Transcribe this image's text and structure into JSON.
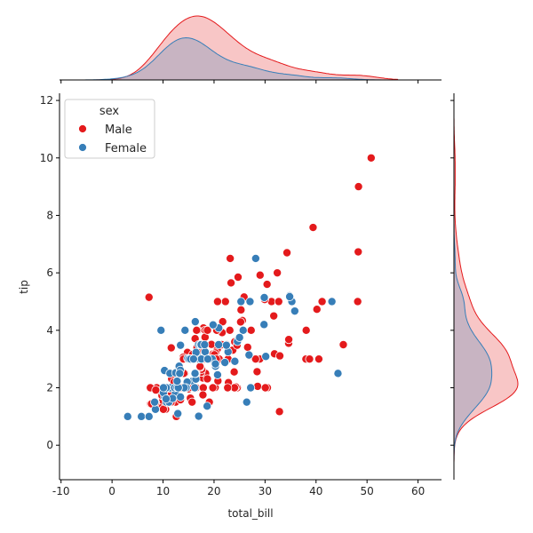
{
  "chart_data": {
    "type": "scatter",
    "kind": "jointplot with marginal KDE",
    "xlabel": "total_bill",
    "ylabel": "tip",
    "xlim": [
      -10.3,
      64.6
    ],
    "ylim": [
      -1.2,
      12.25
    ],
    "xticks": [
      -10,
      0,
      10,
      20,
      30,
      40,
      50,
      60
    ],
    "yticks": [
      0,
      2,
      4,
      6,
      8,
      10,
      12
    ],
    "grid": false,
    "legend": {
      "title": "sex",
      "placement": "top-left"
    },
    "series": [
      {
        "name": "Male",
        "color": "#e41a1c",
        "points": [
          [
            10.34,
            1.66
          ],
          [
            21.01,
            3.5
          ],
          [
            23.68,
            3.31
          ],
          [
            25.29,
            4.71
          ],
          [
            8.77,
            2.0
          ],
          [
            26.88,
            3.12
          ],
          [
            15.04,
            1.96
          ],
          [
            14.78,
            3.23
          ],
          [
            10.27,
            1.71
          ],
          [
            15.42,
            1.57
          ],
          [
            18.43,
            3.0
          ],
          [
            21.58,
            3.92
          ],
          [
            16.29,
            3.71
          ],
          [
            20.65,
            3.35
          ],
          [
            17.92,
            4.08
          ],
          [
            39.42,
            7.58
          ],
          [
            19.82,
            3.18
          ],
          [
            17.81,
            2.34
          ],
          [
            13.37,
            2.0
          ],
          [
            12.69,
            2.0
          ],
          [
            21.7,
            4.3
          ],
          [
            9.55,
            1.45
          ],
          [
            18.35,
            2.5
          ],
          [
            17.78,
            3.27
          ],
          [
            24.06,
            3.6
          ],
          [
            16.31,
            2.0
          ],
          [
            18.69,
            2.31
          ],
          [
            31.27,
            5.0
          ],
          [
            16.04,
            2.24
          ],
          [
            17.46,
            2.54
          ],
          [
            13.94,
            3.06
          ],
          [
            9.68,
            1.32
          ],
          [
            30.4,
            5.6
          ],
          [
            18.29,
            3.0
          ],
          [
            22.23,
            5.0
          ],
          [
            32.4,
            6.0
          ],
          [
            28.55,
            2.05
          ],
          [
            18.04,
            3.0
          ],
          [
            12.54,
            2.5
          ],
          [
            9.94,
            1.56
          ],
          [
            25.56,
            4.34
          ],
          [
            19.49,
            3.51
          ],
          [
            38.01,
            3.0
          ],
          [
            11.24,
            1.76
          ],
          [
            48.27,
            6.73
          ],
          [
            20.29,
            3.21
          ],
          [
            13.81,
            2.0
          ],
          [
            11.02,
            1.98
          ],
          [
            18.29,
            3.76
          ],
          [
            17.59,
            2.64
          ],
          [
            20.08,
            3.15
          ],
          [
            20.23,
            2.01
          ],
          [
            15.01,
            2.09
          ],
          [
            12.02,
            1.97
          ],
          [
            10.51,
            1.25
          ],
          [
            17.92,
            3.08
          ],
          [
            27.2,
            4.0
          ],
          [
            22.76,
            3.0
          ],
          [
            17.29,
            2.71
          ],
          [
            19.44,
            3.0
          ],
          [
            16.66,
            3.4
          ],
          [
            32.68,
            5.0
          ],
          [
            15.98,
            2.03
          ],
          [
            13.03,
            2.0
          ],
          [
            18.28,
            4.0
          ],
          [
            24.71,
            5.85
          ],
          [
            21.16,
            3.0
          ],
          [
            28.97,
            3.0
          ],
          [
            22.49,
            3.5
          ],
          [
            40.17,
            4.73
          ],
          [
            27.28,
            4.0
          ],
          [
            12.03,
            1.5
          ],
          [
            21.01,
            3.0
          ],
          [
            12.46,
            1.5
          ],
          [
            15.36,
            1.64
          ],
          [
            20.49,
            4.06
          ],
          [
            25.21,
            4.29
          ],
          [
            18.24,
            3.76
          ],
          [
            14.0,
            3.0
          ],
          [
            38.07,
            4.0
          ],
          [
            23.95,
            2.55
          ],
          [
            29.93,
            5.07
          ],
          [
            11.69,
            2.31
          ],
          [
            14.26,
            2.5
          ],
          [
            15.95,
            2.0
          ],
          [
            8.52,
            1.48
          ],
          [
            22.82,
            2.18
          ],
          [
            19.08,
            1.5
          ],
          [
            16.0,
            2.0
          ],
          [
            34.3,
            6.7
          ],
          [
            41.19,
            5.0
          ],
          [
            9.78,
            1.73
          ],
          [
            7.51,
            2.0
          ],
          [
            14.07,
            2.5
          ],
          [
            13.13,
            2.0
          ],
          [
            17.26,
            2.74
          ],
          [
            24.55,
            2.0
          ],
          [
            19.77,
            2.0
          ],
          [
            48.17,
            5.0
          ],
          [
            16.49,
            2.0
          ],
          [
            21.5,
            3.5
          ],
          [
            12.66,
            2.5
          ],
          [
            13.81,
            2.0
          ],
          [
            24.52,
            3.48
          ],
          [
            20.76,
            2.24
          ],
          [
            31.71,
            4.5
          ],
          [
            50.81,
            10.0
          ],
          [
            15.81,
            3.16
          ],
          [
            7.25,
            5.15
          ],
          [
            31.85,
            3.18
          ],
          [
            16.82,
            4.0
          ],
          [
            32.9,
            3.11
          ],
          [
            17.89,
            2.0
          ],
          [
            14.48,
            2.0
          ],
          [
            34.63,
            3.55
          ],
          [
            34.65,
            3.68
          ],
          [
            23.33,
            5.65
          ],
          [
            45.35,
            3.5
          ],
          [
            23.17,
            6.5
          ],
          [
            40.55,
            3.0
          ],
          [
            20.69,
            5.0
          ],
          [
            30.46,
            2.0
          ],
          [
            23.1,
            4.0
          ],
          [
            15.69,
            1.5
          ],
          [
            28.44,
            2.56
          ],
          [
            15.48,
            2.02
          ],
          [
            16.58,
            4.0
          ],
          [
            7.56,
            1.44
          ],
          [
            10.34,
            2.0
          ],
          [
            13.51,
            2.0
          ],
          [
            18.71,
            4.0
          ],
          [
            20.53,
            4.0
          ],
          [
            26.59,
            3.41
          ],
          [
            38.73,
            3.0
          ],
          [
            24.27,
            2.03
          ],
          [
            30.06,
            2.0
          ],
          [
            25.89,
            5.16
          ],
          [
            48.33,
            9.0
          ],
          [
            28.15,
            3.0
          ],
          [
            11.59,
            1.5
          ],
          [
            7.74,
            1.44
          ],
          [
            12.16,
            2.2
          ],
          [
            8.58,
            1.92
          ],
          [
            13.42,
            1.58
          ],
          [
            20.45,
            3.0
          ],
          [
            13.28,
            2.72
          ],
          [
            24.01,
            2.0
          ],
          [
            15.69,
            3.0
          ],
          [
            11.61,
            3.39
          ],
          [
            10.77,
            1.47
          ],
          [
            15.53,
            3.0
          ],
          [
            10.07,
            1.25
          ],
          [
            12.6,
            1.0
          ],
          [
            32.83,
            1.17
          ],
          [
            29.03,
            5.92
          ],
          [
            22.67,
            2.0
          ],
          [
            17.82,
            1.75
          ]
        ]
      },
      {
        "name": "Female",
        "color": "#377eb8",
        "points": [
          [
            16.99,
            1.01
          ],
          [
            24.59,
            3.61
          ],
          [
            35.26,
            5.0
          ],
          [
            14.83,
            3.02
          ],
          [
            10.33,
            1.67
          ],
          [
            16.97,
            3.5
          ],
          [
            20.29,
            2.75
          ],
          [
            15.77,
            2.23
          ],
          [
            19.65,
            3.0
          ],
          [
            15.06,
            3.0
          ],
          [
            20.69,
            2.45
          ],
          [
            16.93,
            3.07
          ],
          [
            10.29,
            2.6
          ],
          [
            34.81,
            5.2
          ],
          [
            26.41,
            1.5
          ],
          [
            16.45,
            2.47
          ],
          [
            3.07,
            1.0
          ],
          [
            17.07,
            3.0
          ],
          [
            26.86,
            3.14
          ],
          [
            25.28,
            5.0
          ],
          [
            14.73,
            2.2
          ],
          [
            10.07,
            1.83
          ],
          [
            34.83,
            5.17
          ],
          [
            5.75,
            1.0
          ],
          [
            16.32,
            4.3
          ],
          [
            22.75,
            3.25
          ],
          [
            11.35,
            2.5
          ],
          [
            15.38,
            3.0
          ],
          [
            44.3,
            2.5
          ],
          [
            22.42,
            3.48
          ],
          [
            20.92,
            4.08
          ],
          [
            14.31,
            4.0
          ],
          [
            7.25,
            1.0
          ],
          [
            25.71,
            4.0
          ],
          [
            17.31,
            3.5
          ],
          [
            10.65,
            1.5
          ],
          [
            12.43,
            1.8
          ],
          [
            24.08,
            2.92
          ],
          [
            13.42,
            1.68
          ],
          [
            12.48,
            2.52
          ],
          [
            29.8,
            4.2
          ],
          [
            14.52,
            2.0
          ],
          [
            11.38,
            2.0
          ],
          [
            20.27,
            2.83
          ],
          [
            11.17,
            1.5
          ],
          [
            12.26,
            2.0
          ],
          [
            18.26,
            3.25
          ],
          [
            8.51,
            1.25
          ],
          [
            10.33,
            2.0
          ],
          [
            14.15,
            2.0
          ],
          [
            13.16,
            2.75
          ],
          [
            17.47,
            3.5
          ],
          [
            27.05,
            5.0
          ],
          [
            16.43,
            2.3
          ],
          [
            8.35,
            1.5
          ],
          [
            18.64,
            1.36
          ],
          [
            11.87,
            1.63
          ],
          [
            29.85,
            5.14
          ],
          [
            25.0,
            3.75
          ],
          [
            13.39,
            2.61
          ],
          [
            16.21,
            2.0
          ],
          [
            17.51,
            3.0
          ],
          [
            10.59,
            1.61
          ],
          [
            10.63,
            2.0
          ],
          [
            9.6,
            4.0
          ],
          [
            20.9,
            3.5
          ],
          [
            18.15,
            3.5
          ],
          [
            19.81,
            4.19
          ],
          [
            43.11,
            5.0
          ],
          [
            13.0,
            2.0
          ],
          [
            12.74,
            2.01
          ],
          [
            13.0,
            2.0
          ],
          [
            16.4,
            2.5
          ],
          [
            16.47,
            3.23
          ],
          [
            12.76,
            2.23
          ],
          [
            13.27,
            2.5
          ],
          [
            28.17,
            6.5
          ],
          [
            12.9,
            1.1
          ],
          [
            30.14,
            3.09
          ],
          [
            13.42,
            3.48
          ],
          [
            15.98,
            3.0
          ],
          [
            16.27,
            2.5
          ],
          [
            10.09,
            2.0
          ],
          [
            22.12,
            2.88
          ],
          [
            35.83,
            4.67
          ],
          [
            27.18,
            2.0
          ],
          [
            18.78,
            3.0
          ]
        ]
      }
    ]
  }
}
